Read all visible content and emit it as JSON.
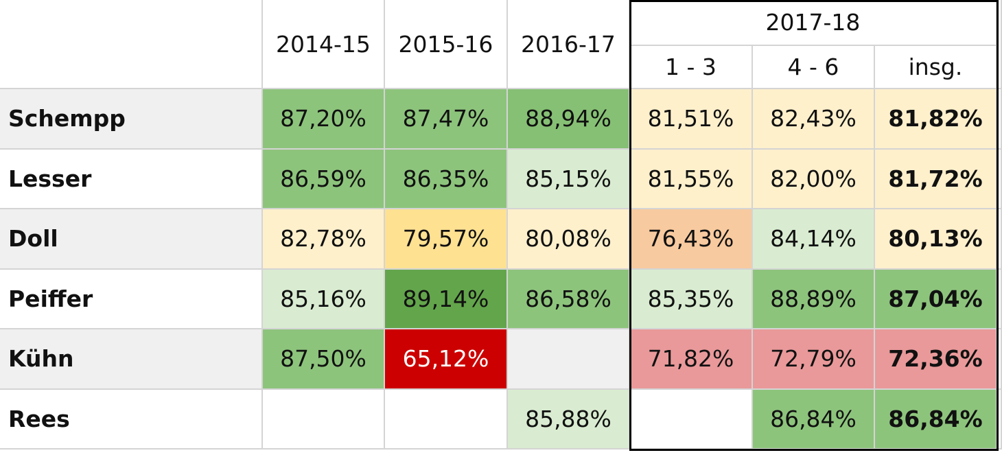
{
  "header": {
    "years": [
      "2014-15",
      "2015-16",
      "2016-17",
      "2017-18"
    ],
    "sub": [
      "1 - 3",
      "4 - 6",
      "insg."
    ]
  },
  "table": {
    "rows": [
      {
        "name": "Schempp",
        "fill": "#f0f0f0",
        "cells": [
          {
            "text": "87,20%",
            "fill": "#8dc47c"
          },
          {
            "text": "87,47%",
            "fill": "#8dc47c"
          },
          {
            "text": "88,94%",
            "fill": "#86c074"
          },
          {
            "text": "81,51%",
            "fill": "#fff0cc"
          },
          {
            "text": "82,43%",
            "fill": "#fff0cc"
          },
          {
            "text": "81,82%",
            "fill": "#fff0cc"
          }
        ]
      },
      {
        "name": "Lesser",
        "fill": "#ffffff",
        "cells": [
          {
            "text": "86,59%",
            "fill": "#8dc47c"
          },
          {
            "text": "86,35%",
            "fill": "#8dc47c"
          },
          {
            "text": "85,15%",
            "fill": "#d9ecd1"
          },
          {
            "text": "81,55%",
            "fill": "#fff0cc"
          },
          {
            "text": "82,00%",
            "fill": "#fff0cc"
          },
          {
            "text": "81,72%",
            "fill": "#fff0cc"
          }
        ]
      },
      {
        "name": "Doll",
        "fill": "#f0f0f0",
        "cells": [
          {
            "text": "82,78%",
            "fill": "#fff0cc"
          },
          {
            "text": "79,57%",
            "fill": "#ffe192"
          },
          {
            "text": "80,08%",
            "fill": "#fff0cc"
          },
          {
            "text": "76,43%",
            "fill": "#f8ca9f"
          },
          {
            "text": "84,14%",
            "fill": "#d9ecd1"
          },
          {
            "text": "80,13%",
            "fill": "#fff0cc"
          }
        ]
      },
      {
        "name": "Peiffer",
        "fill": "#ffffff",
        "cells": [
          {
            "text": "85,16%",
            "fill": "#d9ecd1"
          },
          {
            "text": "89,14%",
            "fill": "#63a54b"
          },
          {
            "text": "86,58%",
            "fill": "#8dc47c"
          },
          {
            "text": "85,35%",
            "fill": "#d9ecd1"
          },
          {
            "text": "88,89%",
            "fill": "#8dc47c"
          },
          {
            "text": "87,04%",
            "fill": "#8dc47c"
          }
        ]
      },
      {
        "name": "Kühn",
        "fill": "#f0f0f0",
        "cells": [
          {
            "text": "87,50%",
            "fill": "#8dc47c"
          },
          {
            "text": "65,12%",
            "fill": "#cc0000",
            "color": "#ffffff"
          },
          {
            "fill": "#f0f0f0"
          },
          {
            "text": "71,82%",
            "fill": "#e9999a"
          },
          {
            "text": "72,79%",
            "fill": "#e9999a"
          },
          {
            "text": "72,36%",
            "fill": "#e9999a"
          }
        ]
      },
      {
        "name": "Rees",
        "fill": "#ffffff",
        "cells": [
          {
            "fill": "#ffffff"
          },
          {
            "fill": "#ffffff"
          },
          {
            "text": "85,88%",
            "fill": "#d9ecd1"
          },
          {
            "fill": "#ffffff"
          },
          {
            "text": "86,84%",
            "fill": "#8dc47c"
          },
          {
            "text": "86,84%",
            "fill": "#8dc47c"
          }
        ]
      }
    ]
  }
}
